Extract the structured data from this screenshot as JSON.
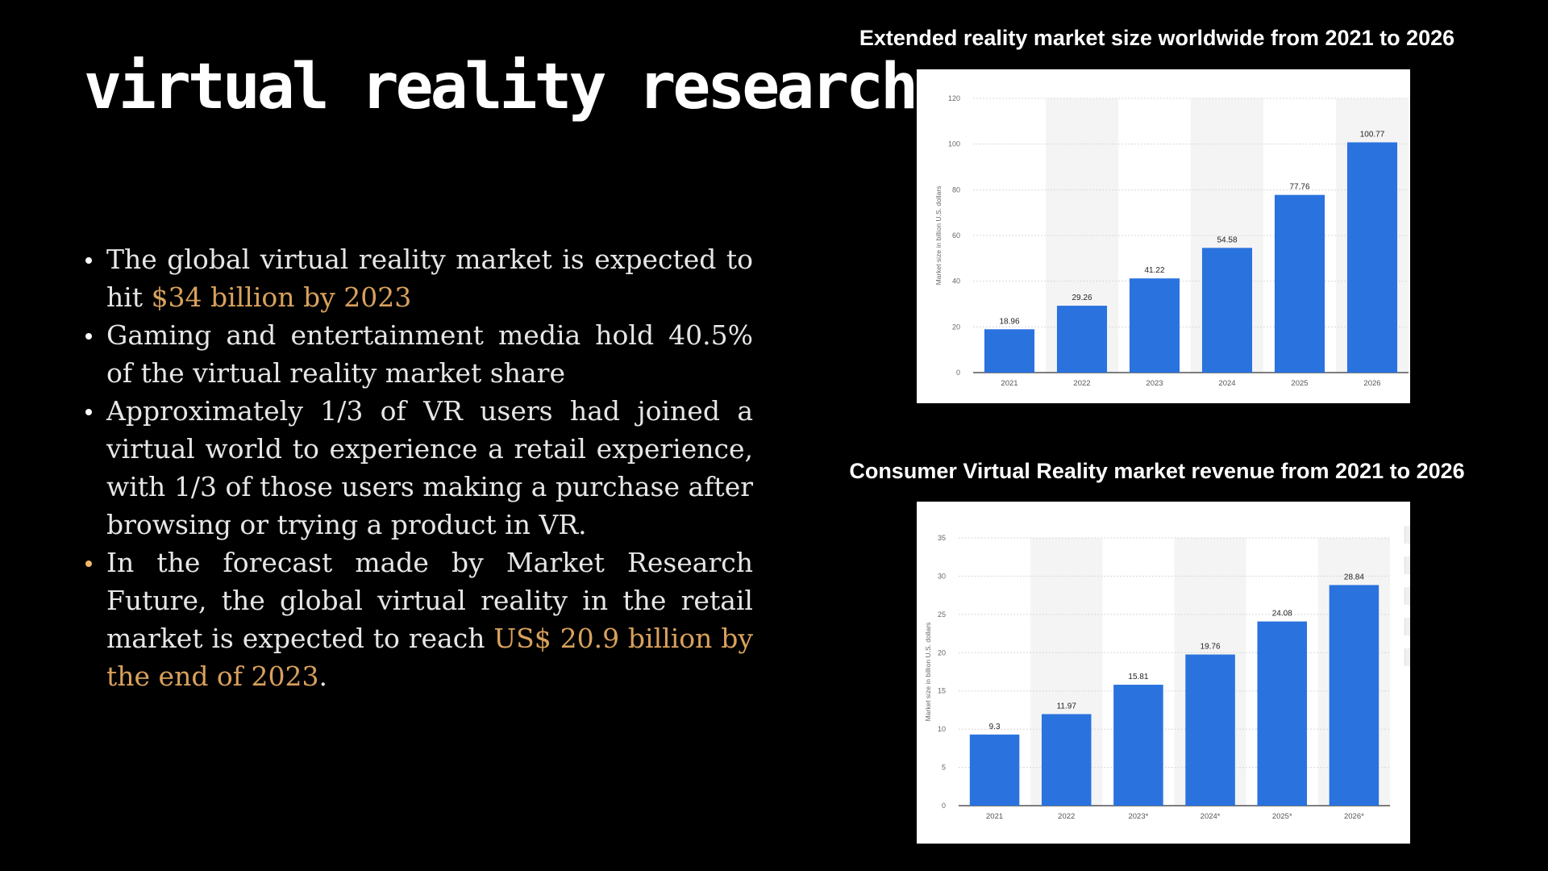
{
  "slide": {
    "title": "virtual reality research",
    "bullets": [
      {
        "parts": [
          {
            "text": "The global virtual reality market is expected to hit ",
            "hl": false
          },
          {
            "text": "$34 billion by 2023",
            "hl": true
          }
        ],
        "dot": "#ffffff"
      },
      {
        "parts": [
          {
            "text": "Gaming and entertainment media hold 40.5% of the virtual reality market share",
            "hl": false
          }
        ],
        "dot": "#ffffff"
      },
      {
        "parts": [
          {
            "text": "Approximately 1/3 of VR users had joined a virtual world to experience a retail experience, with 1/3 of those users making a purchase after browsing or trying a product in VR.",
            "hl": false
          }
        ],
        "dot": "#ffffff"
      },
      {
        "parts": [
          {
            "text": "In the forecast made by Market Research Future, the global virtual reality in the retail market is expected to reach ",
            "hl": false
          },
          {
            "text": "US$ 20.9 billion by the end of 2023",
            "hl": true
          },
          {
            "text": ".",
            "hl": false
          }
        ],
        "dot": "#f2b866"
      }
    ],
    "colors": {
      "highlight": "#d9a15c",
      "bar": "#2a72de"
    }
  },
  "chart_data": [
    {
      "type": "bar",
      "title": "Extended reality market size worldwide from 2021 to 2026",
      "categories": [
        "2021",
        "2022",
        "2023",
        "2024",
        "2025",
        "2026"
      ],
      "values": [
        18.96,
        29.26,
        41.22,
        54.58,
        77.76,
        100.77
      ],
      "value_labels": [
        "18.96",
        "29.26",
        "41.22",
        "54.58",
        "77.76",
        "100.77"
      ],
      "ylabel": "Market size in billion U.S. dollars",
      "ylim": [
        0,
        120
      ],
      "yticks": [
        "0",
        "20",
        "40",
        "60",
        "80",
        "100",
        "120"
      ],
      "grid": true,
      "color": "#2a72de"
    },
    {
      "type": "bar",
      "title": "Consumer Virtual Reality market revenue from 2021 to 2026",
      "categories": [
        "2021",
        "2022",
        "2023*",
        "2024*",
        "2025*",
        "2026*"
      ],
      "values": [
        9.3,
        11.97,
        15.81,
        19.76,
        24.08,
        28.84
      ],
      "value_labels": [
        "9.3",
        "11.97",
        "15.81",
        "19.76",
        "24.08",
        "28.84"
      ],
      "ylabel": "Market size in billion U.S. dollars",
      "ylim": [
        0,
        35
      ],
      "yticks": [
        "0",
        "5",
        "10",
        "15",
        "20",
        "25",
        "30",
        "35"
      ],
      "grid": true,
      "color": "#2a72de"
    }
  ]
}
